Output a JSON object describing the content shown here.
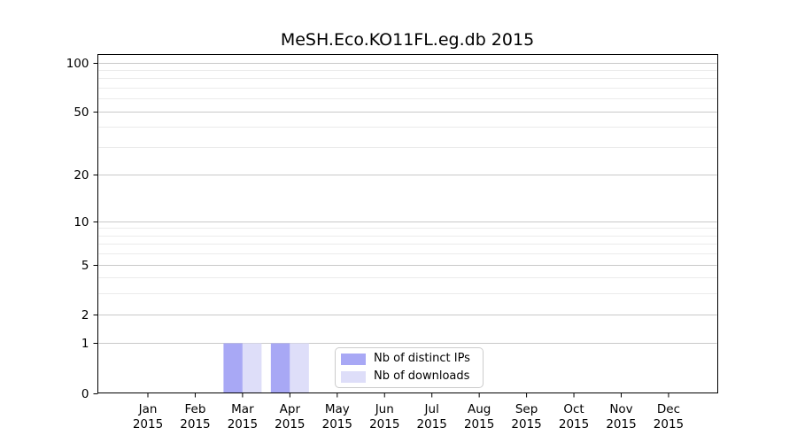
{
  "chart_data": {
    "type": "bar",
    "title": "MeSH.Eco.KO11FL.eg.db 2015",
    "year": "2015",
    "categories": [
      "Jan",
      "Feb",
      "Mar",
      "Apr",
      "May",
      "Jun",
      "Jul",
      "Aug",
      "Sep",
      "Oct",
      "Nov",
      "Dec"
    ],
    "series": [
      {
        "name": "Nb of distinct IPs",
        "color": "#a8a8f5",
        "values": [
          0,
          0,
          1,
          1,
          0,
          0,
          0,
          0,
          0,
          0,
          0,
          0
        ]
      },
      {
        "name": "Nb of downloads",
        "color": "#dedef9",
        "values": [
          0,
          0,
          1,
          1,
          0,
          0,
          0,
          0,
          0,
          0,
          0,
          0
        ]
      }
    ],
    "xlabel": "",
    "ylabel": "",
    "yscale": "log1p",
    "yticks": [
      0,
      1,
      2,
      5,
      10,
      20,
      50,
      100
    ],
    "minor_gridlines": [
      3,
      4,
      6,
      7,
      8,
      9,
      30,
      40,
      60,
      70,
      80,
      90
    ],
    "ylim": [
      0,
      110
    ],
    "grid": true,
    "legend_position": "bottom-center-inside",
    "colors": {
      "major_grid": "#c9c9c9",
      "minor_grid": "#ebebeb",
      "frame": "#000000",
      "text": "#000000",
      "background": "#ffffff"
    }
  }
}
